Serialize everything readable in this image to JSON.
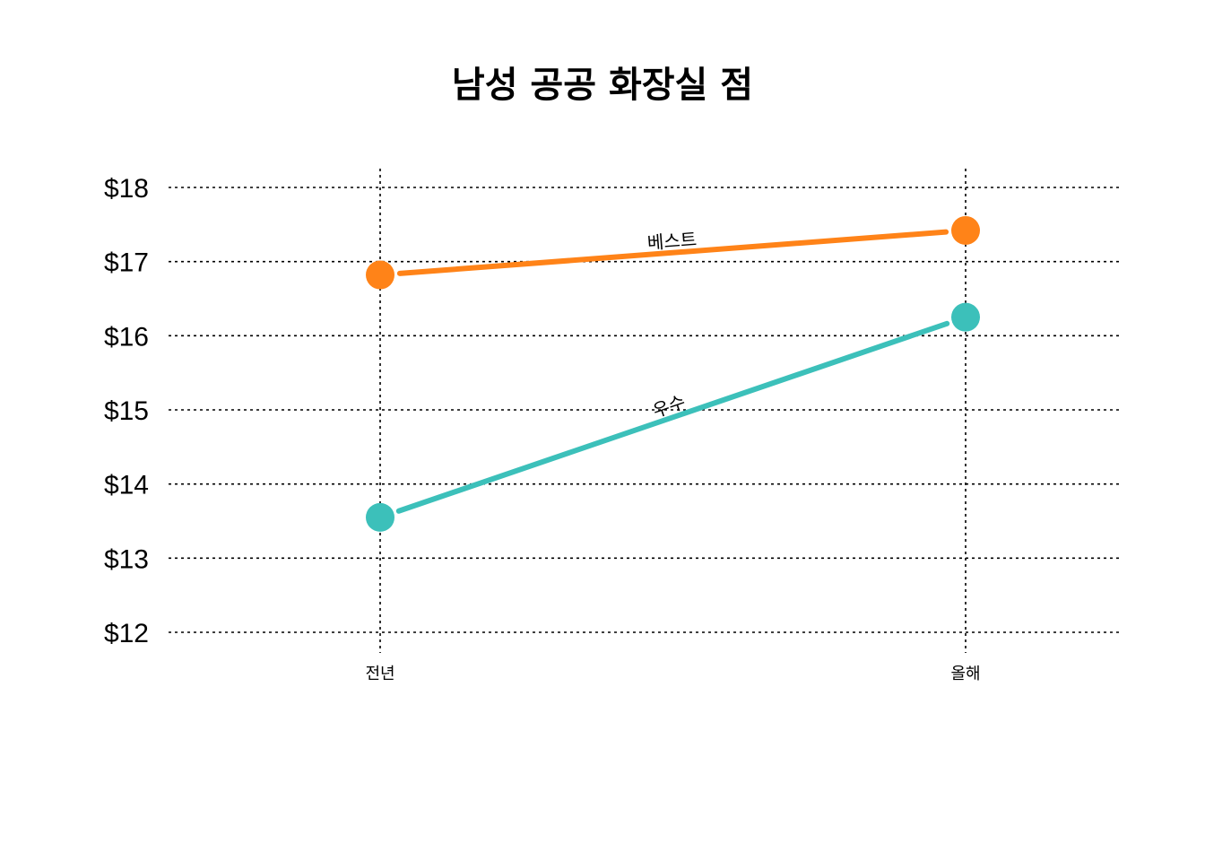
{
  "chart_data": {
    "type": "line",
    "title": "남성 공공 화장실 점",
    "xlabel": "",
    "ylabel": "",
    "categories": [
      "전년",
      "올해"
    ],
    "ylim": [
      12,
      18
    ],
    "yticks": [
      12,
      13,
      14,
      15,
      16,
      17,
      18
    ],
    "ytick_format": "$",
    "grid": true,
    "series": [
      {
        "name": "베스트",
        "color": "#ff8318",
        "values": [
          16.82,
          17.42
        ]
      },
      {
        "name": "우수",
        "color": "#3cc0ba",
        "values": [
          13.55,
          16.25
        ]
      }
    ]
  }
}
